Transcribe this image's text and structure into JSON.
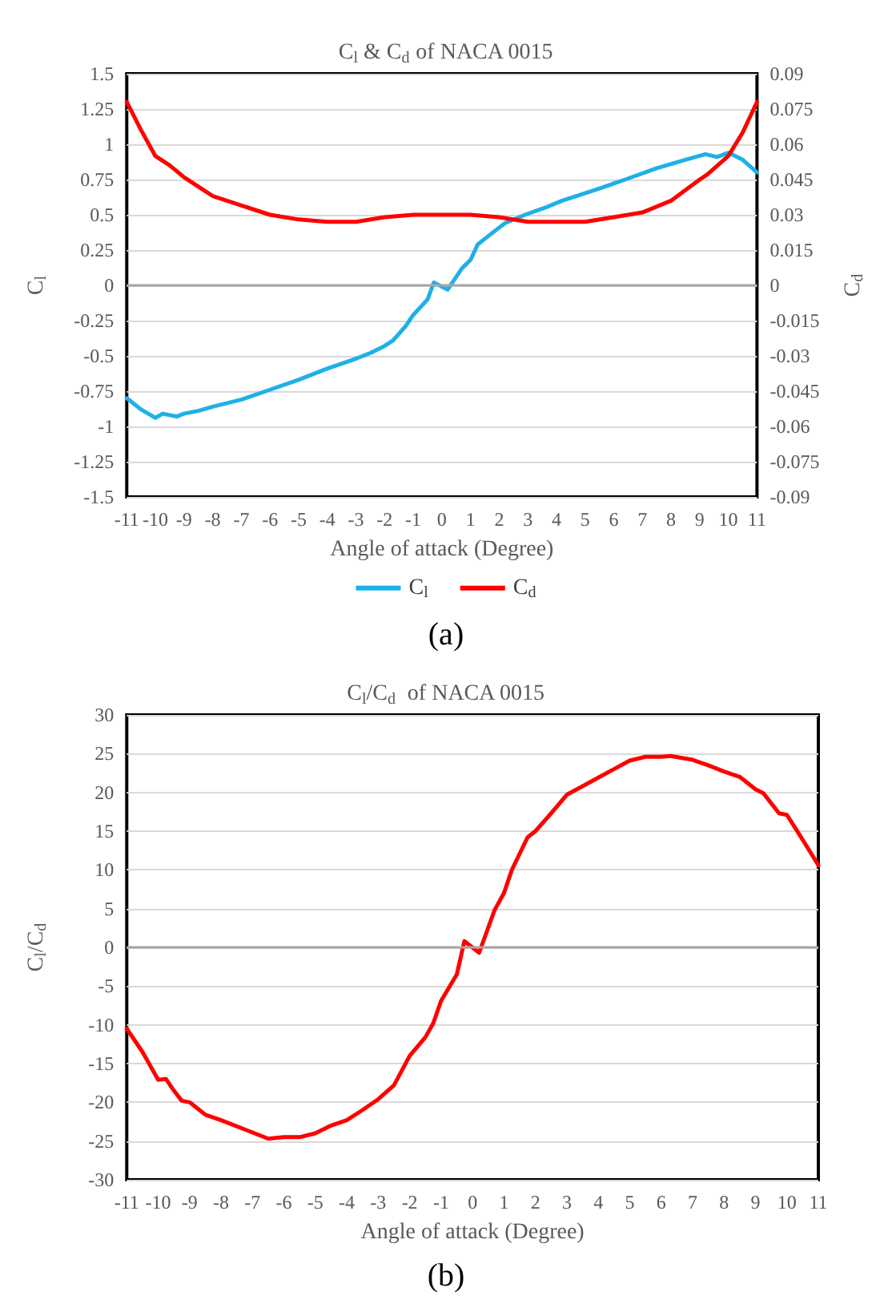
{
  "chart_data": [
    {
      "type": "line",
      "title": "C$_{l}$ & C$_{d}$ of NACA 0015",
      "xlabel": "Angle of attack (Degree)",
      "ylabel": "C$_{l}$",
      "y2label": "C$_{d}$",
      "xlim": [
        -11,
        11
      ],
      "xticks": [
        -11,
        -10,
        -9,
        -8,
        -7,
        -6,
        -5,
        -4,
        -3,
        -2,
        -1,
        0,
        1,
        2,
        3,
        4,
        5,
        6,
        7,
        8,
        9,
        10,
        11
      ],
      "ylim": [
        -1.5,
        1.5
      ],
      "yticks": [
        -1.5,
        -1.25,
        -1,
        -0.75,
        -0.5,
        -0.25,
        0,
        0.25,
        0.5,
        0.75,
        1,
        1.25,
        1.5
      ],
      "y2lim": [
        -0.09,
        0.09
      ],
      "y2ticks": [
        -0.09,
        -0.075,
        -0.06,
        -0.045,
        -0.03,
        -0.015,
        0,
        0.015,
        0.03,
        0.045,
        0.06,
        0.075,
        0.09
      ],
      "series": [
        {
          "name": "C$_{l}$",
          "color": "#1fb0e8",
          "x": [
            -11,
            -10.5,
            -10,
            -9.75,
            -9.25,
            -9,
            -8.5,
            -8,
            -7,
            -6,
            -5,
            -4,
            -3,
            -2.5,
            -2,
            -1.7,
            -1.27,
            -1,
            -0.5,
            -0.28,
            0.2,
            0.7,
            1,
            1.25,
            1.75,
            2.2,
            2.9,
            3.6,
            4.2,
            5.4,
            6.4,
            7.5,
            8.5,
            9.2,
            9.6,
            10,
            10.5,
            11
          ],
          "values": [
            -0.8,
            -0.88,
            -0.94,
            -0.91,
            -0.93,
            -0.91,
            -0.89,
            -0.86,
            -0.81,
            -0.74,
            -0.67,
            -0.59,
            -0.52,
            -0.48,
            -0.43,
            -0.39,
            -0.29,
            -0.21,
            -0.1,
            0.02,
            -0.03,
            0.12,
            0.18,
            0.29,
            0.37,
            0.44,
            0.5,
            0.55,
            0.6,
            0.68,
            0.75,
            0.83,
            0.89,
            0.93,
            0.91,
            0.94,
            0.89,
            0.8
          ]
        },
        {
          "name": "C$_{d}$",
          "color": "#ff0000",
          "axis": "y2",
          "x": [
            -11,
            -10.5,
            -10,
            -9.5,
            -9,
            -8.5,
            -8,
            -7,
            -6,
            -5,
            -4,
            -3,
            -2,
            -1,
            0,
            1,
            2,
            3,
            4,
            5,
            6,
            7,
            8,
            9,
            9.25,
            10,
            10.5,
            11
          ],
          "values": [
            0.078,
            0.066,
            0.055,
            0.051,
            0.046,
            0.042,
            0.038,
            0.034,
            0.03,
            0.028,
            0.027,
            0.027,
            0.029,
            0.03,
            0.03,
            0.03,
            0.029,
            0.027,
            0.027,
            0.027,
            0.029,
            0.031,
            0.036,
            0.045,
            0.047,
            0.055,
            0.065,
            0.078
          ]
        }
      ],
      "ref_lines": [
        {
          "axis": "y",
          "value": 0,
          "color": "#a6a6a6"
        }
      ],
      "grid": "y",
      "legend": "bottom",
      "annotations": [
        "(a)"
      ]
    },
    {
      "type": "line",
      "title": "C$_{l}$/C$_{d}$  of NACA 0015",
      "xlabel": "Angle of attack (Degree)",
      "ylabel": "C$_{l}$/C$_{d}$",
      "xlim": [
        -11,
        11
      ],
      "xticks": [
        -11,
        -10,
        -9,
        -8,
        -7,
        -6,
        -5,
        -4,
        -3,
        -2,
        -1,
        0,
        1,
        2,
        3,
        4,
        5,
        6,
        7,
        8,
        9,
        10,
        11
      ],
      "ylim": [
        -30,
        30
      ],
      "yticks": [
        -30,
        -25,
        -20,
        -15,
        -10,
        -5,
        0,
        5,
        10,
        15,
        20,
        25,
        30
      ],
      "series": [
        {
          "color": "#ff0000",
          "x": [
            -11,
            -10.5,
            -10,
            -9.75,
            -9.5,
            -9.25,
            -9,
            -8.5,
            -8,
            -7,
            -6.5,
            -6,
            -5.5,
            -5,
            -4.5,
            -4,
            -3.5,
            -3,
            -2.5,
            -2,
            -1.5,
            -1.25,
            -1,
            -0.5,
            -0.26,
            0.21,
            0.7,
            1,
            1.25,
            1.75,
            2,
            2.5,
            3,
            3.5,
            4,
            4.5,
            5,
            5.5,
            6,
            6.3,
            7,
            7.5,
            8,
            8.5,
            9,
            9.25,
            9.75,
            10,
            10.5,
            11
          ],
          "values": [
            -10.5,
            -13.5,
            -17.1,
            -17,
            -18.5,
            -19.8,
            -20,
            -21.6,
            -22.3,
            -23.9,
            -24.7,
            -24.5,
            -24.5,
            -24,
            -23,
            -22.3,
            -21,
            -19.6,
            -17.8,
            -14,
            -11.6,
            -9.8,
            -6.9,
            -3.5,
            0.8,
            -0.7,
            4.8,
            7,
            10,
            14.2,
            15,
            17.3,
            19.7,
            20.8,
            21.9,
            23,
            24.1,
            24.6,
            24.6,
            24.7,
            24.2,
            23.5,
            22.7,
            22,
            20.4,
            19.9,
            17.3,
            17.1,
            13.9,
            10.6
          ]
        }
      ],
      "ref_lines": [
        {
          "axis": "y",
          "value": 0,
          "color": "#a6a6a6"
        }
      ],
      "grid": "y",
      "annotations": [
        "(b)"
      ]
    }
  ]
}
